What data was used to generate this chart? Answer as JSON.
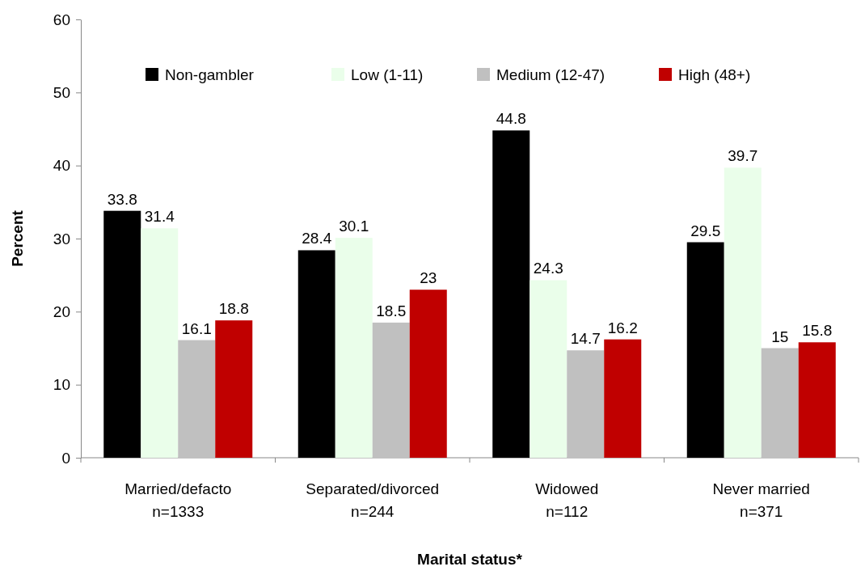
{
  "chart_data": {
    "type": "bar",
    "xlabel": "Marital status*",
    "ylabel": "Percent",
    "categories": [
      "Married/defacto\nn=1333",
      "Separated/divorced\nn=244",
      "Widowed\nn=112",
      "Never married\nn=371"
    ],
    "series": [
      {
        "name": "Non-gambler",
        "color": "#000000",
        "values": [
          33.8,
          28.4,
          44.8,
          29.5
        ]
      },
      {
        "name": "Low (1-11)",
        "color": "#eafeea",
        "values": [
          31.4,
          30.1,
          24.3,
          39.7
        ]
      },
      {
        "name": "Medium (12-47)",
        "color": "#c0c0c0",
        "values": [
          16.1,
          18.5,
          14.7,
          15
        ]
      },
      {
        "name": "High (48+)",
        "color": "#c00000",
        "values": [
          18.8,
          23,
          16.2,
          15.8
        ]
      }
    ],
    "ylim": [
      0,
      60
    ],
    "yticks": [
      0,
      10,
      20,
      30,
      40,
      50,
      60
    ],
    "grid": false,
    "legend": "top",
    "data_labels": true
  }
}
